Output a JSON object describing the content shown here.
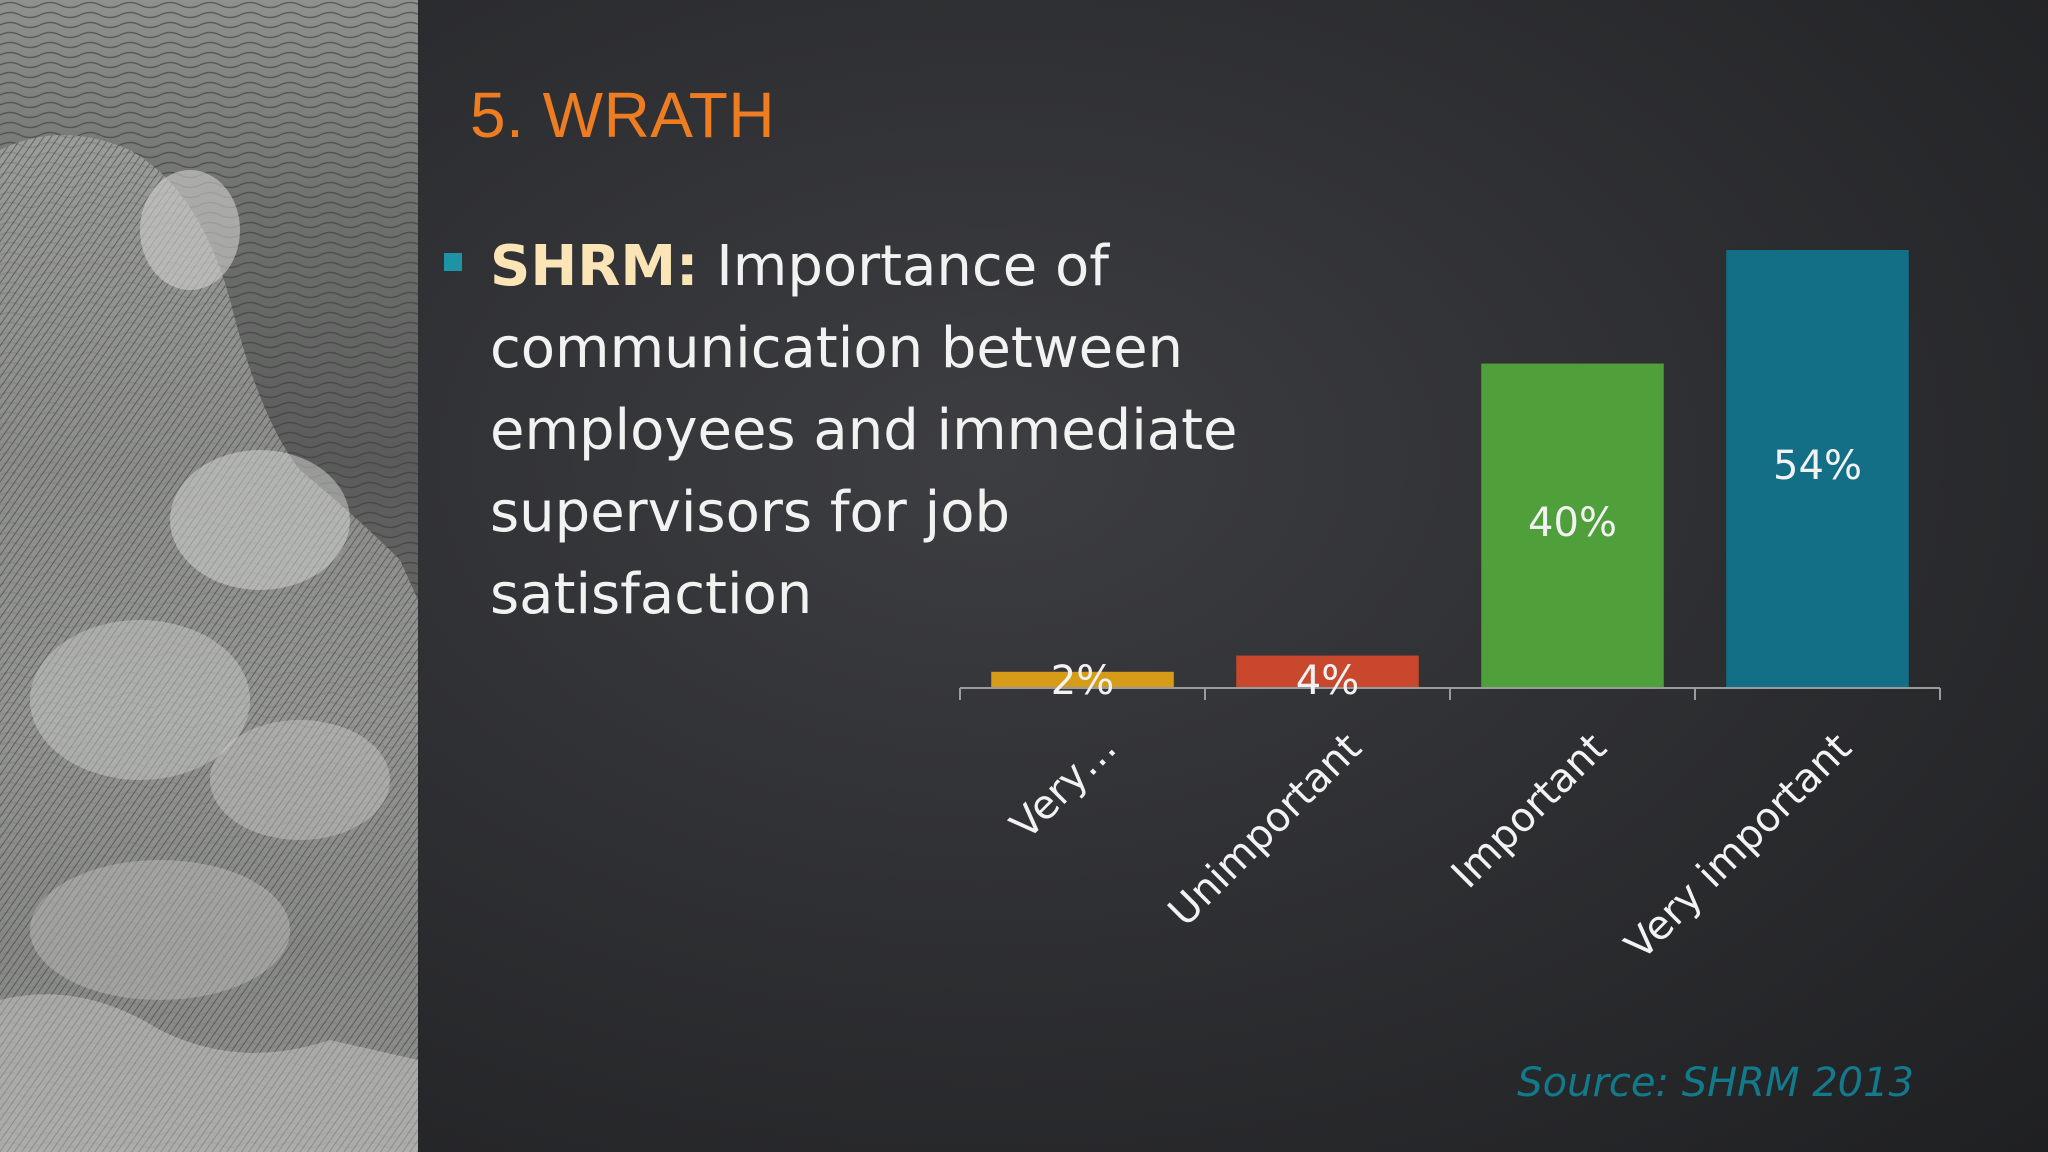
{
  "slide": {
    "title": "5. WRATH",
    "bullet_lead": "SHRM:",
    "bullet_text": " Importance of communication between employees and immediate supervisors for job satisfaction",
    "source": "Source:  SHRM 2013"
  },
  "colors": {
    "title": "#ee7d22",
    "bullet_marker": "#1f93a6",
    "lead": "#fbe5b6",
    "source": "#127a8b"
  },
  "chart_data": {
    "type": "bar",
    "categories": [
      "Very…",
      "Unimportant",
      "Important",
      "Very important"
    ],
    "values": [
      2,
      4,
      40,
      54
    ],
    "data_labels": [
      "2%",
      "4%",
      "40%",
      "54%"
    ],
    "colors": [
      "#d69c17",
      "#c8472d",
      "#4f9f3a",
      "#136f86"
    ],
    "ylim": [
      0,
      54
    ],
    "grid": false,
    "legend": "none"
  }
}
